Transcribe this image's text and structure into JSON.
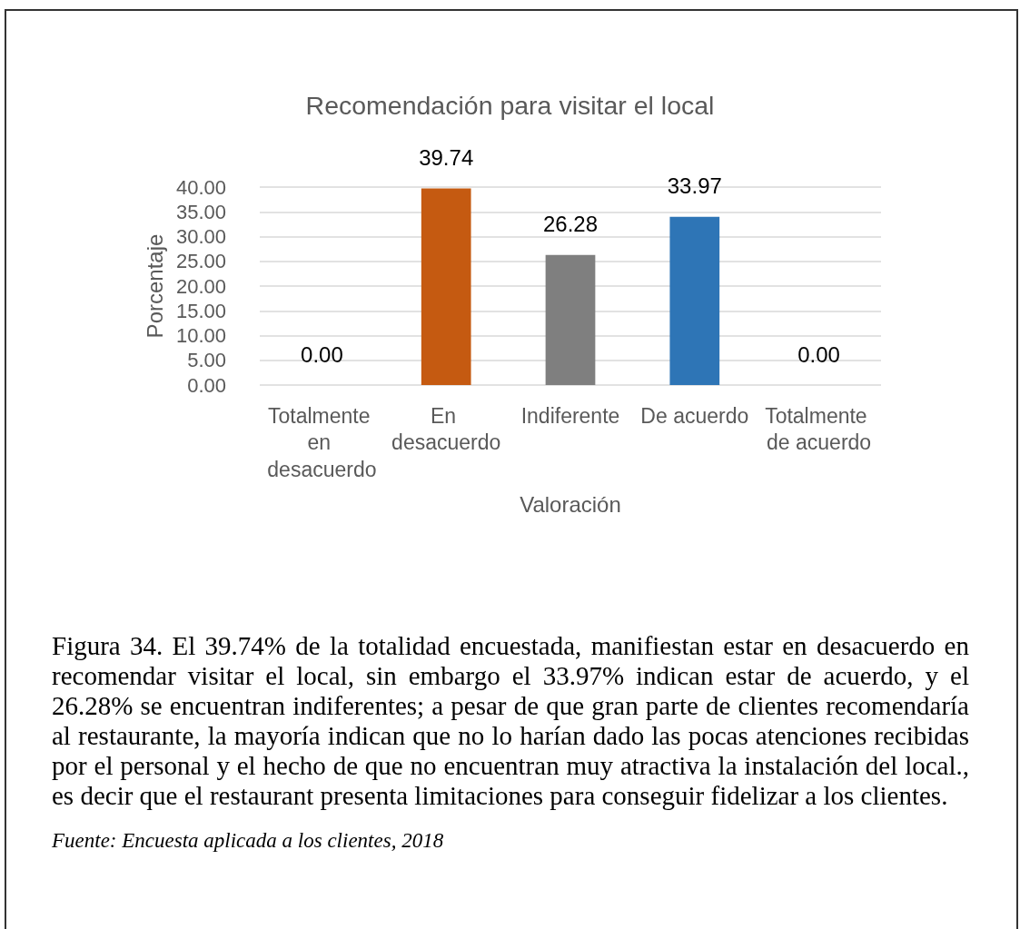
{
  "chart_data": {
    "type": "bar",
    "title": "Recomendación para visitar el local",
    "xlabel": "Valoración",
    "ylabel": "Porcentaje",
    "categories": [
      "Totalmente en desacuerdo",
      "En desacuerdo",
      "Indiferente",
      "De acuerdo",
      "Totalmente de acuerdo"
    ],
    "values": [
      0,
      39.74,
      26.28,
      33.97,
      0
    ],
    "colors": [
      "#222a35",
      "#c55a11",
      "#7f7f7f",
      "#2e75b6",
      "#385723"
    ],
    "value_labels": [
      "0.00",
      "39.74",
      "26.28",
      "33.97",
      "0.00"
    ],
    "ylim": [
      0,
      40
    ],
    "yticks": [
      {
        "value": 0,
        "label": "0.00"
      },
      {
        "value": 5,
        "label": "5.00"
      },
      {
        "value": 10,
        "label": "10.00"
      },
      {
        "value": 15,
        "label": "15.00"
      },
      {
        "value": 20,
        "label": "20.00"
      },
      {
        "value": 25,
        "label": "25.00"
      },
      {
        "value": 30,
        "label": "30.00"
      },
      {
        "value": 35,
        "label": "35.00"
      },
      {
        "value": 40,
        "label": "40.00"
      }
    ],
    "grid": "y",
    "annotations": [
      "Figura 34. El 39.74% de la totalidad encuestada, manifiestan estar en desacuerdo en recomendar visitar el local, sin embargo el 33.97% indican estar de acuerdo, y el 26.28% se encuentran indiferentes; a pesar de que gran parte de clientes recomendaría al restaurante, la mayoría indican que no lo harían dado las pocas atenciones recibidas por el personal y el hecho de que no encuentran muy atractiva la instalación del local., es decir que el restaurant presenta limitaciones para conseguir fidelizar a los clientes.",
      "Fuente: Encuesta aplicada a los clientes, 2018"
    ]
  }
}
